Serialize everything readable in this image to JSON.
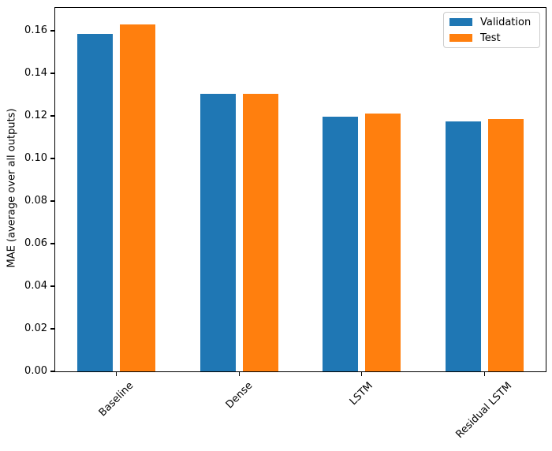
{
  "chart_data": {
    "type": "bar",
    "title": "",
    "xlabel": "",
    "ylabel": "MAE (average over all outputs)",
    "categories": [
      "Baseline",
      "Dense",
      "LSTM",
      "Residual LSTM"
    ],
    "series": [
      {
        "name": "Validation",
        "color": "#1f77b4",
        "values": [
          0.1585,
          0.1305,
          0.1195,
          0.1175
        ]
      },
      {
        "name": "Test",
        "color": "#ff7f0e",
        "values": [
          0.163,
          0.1303,
          0.1209,
          0.1186
        ]
      }
    ],
    "ylim": [
      0,
      0.1707
    ],
    "ytick_labels": [
      "0.00",
      "0.02",
      "0.04",
      "0.06",
      "0.08",
      "0.10",
      "0.12",
      "0.14",
      "0.16"
    ],
    "ytick_values": [
      0,
      0.02,
      0.04,
      0.06,
      0.08,
      0.1,
      0.12,
      0.14,
      0.16
    ],
    "xtick_rotation": 45,
    "grid": false,
    "legend_position": "upper right",
    "background_color": "#ffffff",
    "spine_color": "#000000"
  }
}
